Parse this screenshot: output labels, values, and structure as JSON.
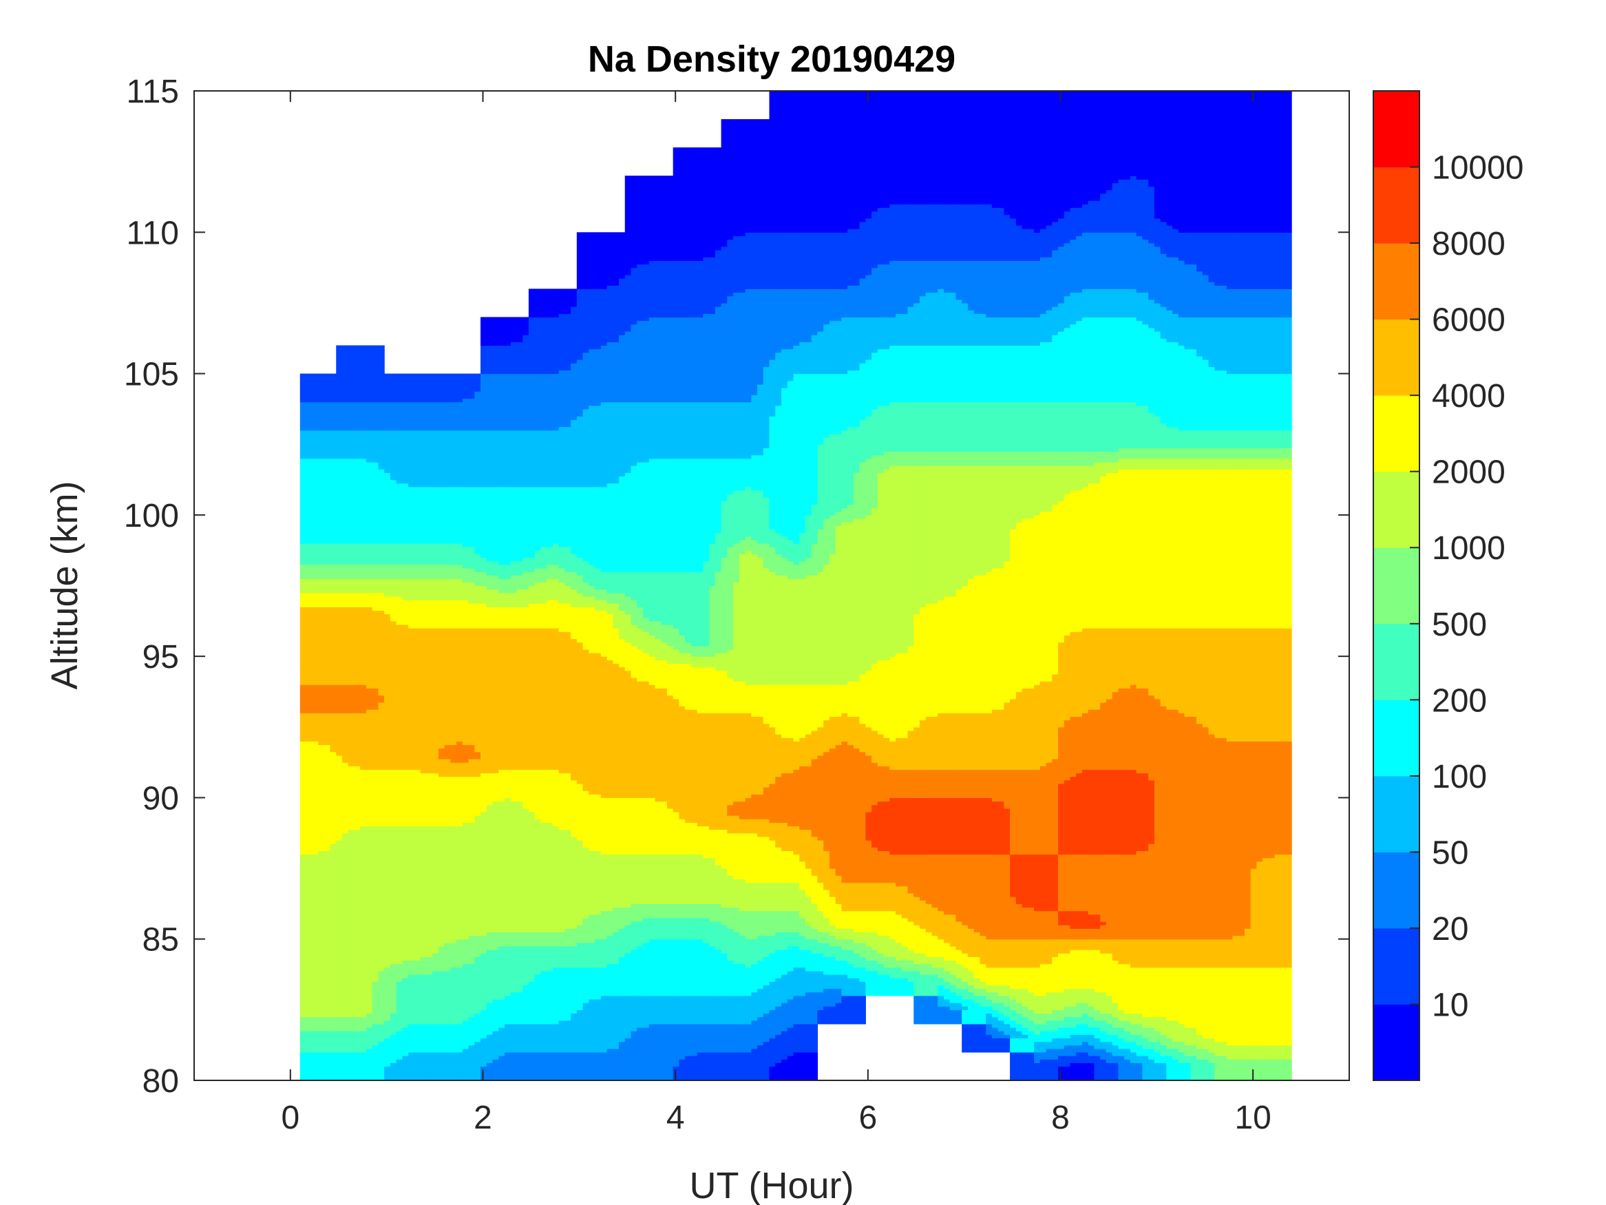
{
  "chart_data": {
    "type": "heatmap",
    "subtype": "filled-contour",
    "title": "Na Density 20190429",
    "xlabel": "UT (Hour)",
    "ylabel": "Altitude (km)",
    "xlim": [
      -1,
      11
    ],
    "ylim": [
      80,
      115
    ],
    "xticks": [
      "0",
      "2",
      "4",
      "6",
      "8",
      "10"
    ],
    "yticks": [
      "80",
      "85",
      "90",
      "95",
      "100",
      "105",
      "110",
      "115"
    ],
    "colorbar": {
      "tick_labels": [
        "10",
        "20",
        "50",
        "100",
        "200",
        "500",
        "1000",
        "2000",
        "4000",
        "6000",
        "8000",
        "10000"
      ],
      "colors": [
        "#0000ff",
        "#0040ff",
        "#0080ff",
        "#00bfff",
        "#00ffff",
        "#40ffbf",
        "#80ff80",
        "#bfff40",
        "#ffff00",
        "#ffbf00",
        "#ff8000",
        "#ff4000",
        "#ff0000"
      ]
    },
    "grid": {
      "x_start": 0.1,
      "x_end": 10.4,
      "column_centers_hour": [
        0.25,
        0.75,
        1.25,
        1.75,
        2.25,
        2.75,
        3.25,
        3.75,
        4.25,
        4.75,
        5.25,
        5.75,
        6.25,
        6.75,
        7.25,
        7.75,
        8.25,
        8.75,
        9.25,
        9.75,
        10.25
      ],
      "row_start_km": 80.5,
      "row_step_km": 1,
      "encoding": "level index per 1-km row from 80.5 km upward; 0-9,a=10,b=11,c=12 ; '.' = no data",
      "columns": [
        "4577777788889a99975444321..........",
        "4577777778899a999754443211.........",
        "3455777778899999875443321..........",
        "34556777788a9999875443321..........",
        "234557777789999986444332210........",
        "2344577778899999875443322110.......",
        "233456778899999885444333221100.....",
        "22344577889999875544443322211000...",
        "123445778999988555444433222110000..",
        "123456788a999877777554332222110000.",
        "012346789aa988777754444443221100000",
        "..13589aaaaa98777777555443321100000",
        "...4789abba988877777775544322110000",
        "..2589aabba998888777775544332110000",
        ".1489aaabba998888877775544322110000",
        "14789abbaaa999888888775544322100000",
        "03688baabbbaa9998888875544432210000",
        "25889aaabbbaaa998888885544432211000",
        "47889aaaaaaaa9998888885444322100000",
        "68889aaaaaaa99998888885443321100000",
        "68889999aaaa99998888885443321100000"
      ]
    }
  }
}
